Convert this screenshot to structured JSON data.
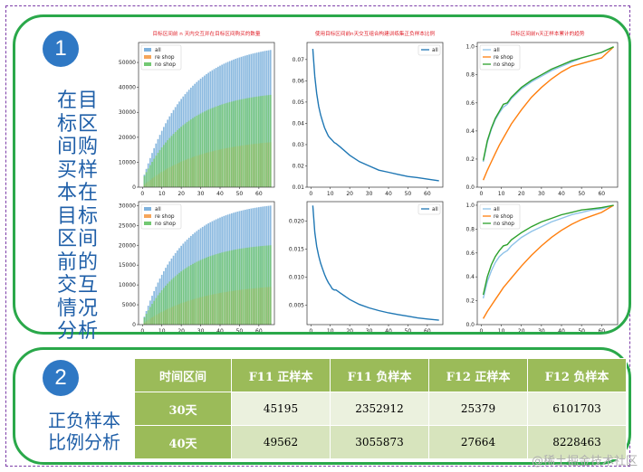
{
  "section1": {
    "number": "1",
    "text_chars": [
      "在目",
      "标区",
      "间购",
      "买样",
      "本在",
      "目标",
      "区间",
      "前的",
      "交互",
      "情况",
      "分析"
    ]
  },
  "section2": {
    "number": "2",
    "title_lines": [
      "正负样本",
      "比例分析"
    ]
  },
  "chart_data": [
    {
      "type": "bar",
      "title": "目标区间前 n 天内交互并在目标区间购买的数量",
      "x_range": [
        1,
        66
      ],
      "xticks": [
        0,
        10,
        20,
        30,
        40,
        50,
        60
      ],
      "ylim": [
        0,
        58000
      ],
      "yticks": [
        0,
        10000,
        20000,
        30000,
        40000,
        50000
      ],
      "legend": "top-left",
      "series": [
        {
          "name": "all",
          "color": "#7fb2dd",
          "start": 5000,
          "end": 55000,
          "k": 0.045
        },
        {
          "name": "re shop",
          "color": "#f5a55a",
          "start": 1000,
          "end": 18000,
          "k": 0.035
        },
        {
          "name": "no shop",
          "color": "#72c872",
          "start": 4500,
          "end": 37000,
          "k": 0.045
        }
      ]
    },
    {
      "type": "line",
      "title": "使用目标区间前n天交互组合构建训练集正负样本比例",
      "x_range": [
        1,
        66
      ],
      "xticks": [
        0,
        10,
        20,
        30,
        40,
        50,
        60
      ],
      "ylim": [
        0.01,
        0.078
      ],
      "yticks": [
        0.01,
        0.02,
        0.03,
        0.04,
        0.05,
        0.06,
        0.07
      ],
      "legend": "top-right",
      "series": [
        {
          "name": "all",
          "color": "#1f77b4",
          "points": [
            [
              1,
              0.075
            ],
            [
              2,
              0.062
            ],
            [
              3,
              0.054
            ],
            [
              4,
              0.048
            ],
            [
              5,
              0.044
            ],
            [
              6,
              0.041
            ],
            [
              7,
              0.038
            ],
            [
              8,
              0.036
            ],
            [
              9,
              0.034
            ],
            [
              10,
              0.033
            ],
            [
              11,
              0.032
            ],
            [
              12,
              0.031
            ],
            [
              13,
              0.0305
            ],
            [
              15,
              0.029
            ],
            [
              20,
              0.025
            ],
            [
              25,
              0.022
            ],
            [
              30,
              0.02
            ],
            [
              35,
              0.018
            ],
            [
              40,
              0.017
            ],
            [
              45,
              0.016
            ],
            [
              50,
              0.015
            ],
            [
              55,
              0.0145
            ],
            [
              60,
              0.0138
            ],
            [
              66,
              0.013
            ]
          ]
        }
      ]
    },
    {
      "type": "line",
      "title": "目标区间前n天正样本累计的趋势",
      "x_range": [
        1,
        66
      ],
      "xticks": [
        0,
        10,
        20,
        30,
        40,
        50,
        60
      ],
      "ylim": [
        0,
        1.03
      ],
      "yticks": [
        0.0,
        0.2,
        0.4,
        0.6,
        0.8,
        1.0
      ],
      "legend": "top-left",
      "series": [
        {
          "name": "all",
          "color": "#8ec2e8",
          "points": [
            [
              1,
              0.18
            ],
            [
              3,
              0.32
            ],
            [
              5,
              0.41
            ],
            [
              7,
              0.48
            ],
            [
              9,
              0.53
            ],
            [
              11,
              0.57
            ],
            [
              13,
              0.59
            ],
            [
              15,
              0.63
            ],
            [
              20,
              0.7
            ],
            [
              25,
              0.75
            ],
            [
              30,
              0.79
            ],
            [
              35,
              0.83
            ],
            [
              40,
              0.86
            ],
            [
              45,
              0.89
            ],
            [
              50,
              0.92
            ],
            [
              55,
              0.94
            ],
            [
              60,
              0.96
            ],
            [
              66,
              1.0
            ]
          ]
        },
        {
          "name": "re shop",
          "color": "#ff7f0e",
          "points": [
            [
              1,
              0.05
            ],
            [
              3,
              0.12
            ],
            [
              5,
              0.18
            ],
            [
              7,
              0.24
            ],
            [
              9,
              0.3
            ],
            [
              11,
              0.35
            ],
            [
              13,
              0.4
            ],
            [
              15,
              0.45
            ],
            [
              20,
              0.55
            ],
            [
              25,
              0.64
            ],
            [
              30,
              0.71
            ],
            [
              35,
              0.77
            ],
            [
              40,
              0.82
            ],
            [
              45,
              0.86
            ],
            [
              50,
              0.88
            ],
            [
              55,
              0.9
            ],
            [
              60,
              0.92
            ],
            [
              66,
              1.0
            ]
          ]
        },
        {
          "name": "no shop",
          "color": "#2ca02c",
          "points": [
            [
              1,
              0.19
            ],
            [
              3,
              0.33
            ],
            [
              5,
              0.42
            ],
            [
              7,
              0.49
            ],
            [
              9,
              0.54
            ],
            [
              11,
              0.59
            ],
            [
              13,
              0.6
            ],
            [
              15,
              0.64
            ],
            [
              20,
              0.71
            ],
            [
              25,
              0.76
            ],
            [
              30,
              0.8
            ],
            [
              35,
              0.84
            ],
            [
              40,
              0.87
            ],
            [
              45,
              0.9
            ],
            [
              50,
              0.92
            ],
            [
              55,
              0.94
            ],
            [
              60,
              0.96
            ],
            [
              66,
              1.0
            ]
          ]
        }
      ]
    },
    {
      "type": "bar",
      "title": "",
      "x_range": [
        1,
        66
      ],
      "xticks": [
        0,
        10,
        20,
        30,
        40,
        50,
        60
      ],
      "ylim": [
        0,
        31000
      ],
      "yticks": [
        0,
        5000,
        10000,
        15000,
        20000,
        25000,
        30000
      ],
      "legend": "top-left",
      "series": [
        {
          "name": "all",
          "color": "#7fb2dd",
          "start": 2000,
          "end": 30000,
          "k": 0.05
        },
        {
          "name": "re shop",
          "color": "#f5a55a",
          "start": 500,
          "end": 9500,
          "k": 0.035
        },
        {
          "name": "no shop",
          "color": "#72c872",
          "start": 1800,
          "end": 20000,
          "k": 0.05
        }
      ]
    },
    {
      "type": "line",
      "title": "",
      "x_range": [
        1,
        66
      ],
      "xticks": [
        0,
        10,
        20,
        30,
        40,
        50,
        60
      ],
      "ylim": [
        0.0015,
        0.0235
      ],
      "yticks": [
        0.005,
        0.01,
        0.015,
        0.02
      ],
      "legend": "top-right",
      "series": [
        {
          "name": "all",
          "color": "#1f77b4",
          "points": [
            [
              1,
              0.0228
            ],
            [
              2,
              0.018
            ],
            [
              3,
              0.0155
            ],
            [
              4,
              0.0138
            ],
            [
              5,
              0.0125
            ],
            [
              6,
              0.0115
            ],
            [
              7,
              0.0105
            ],
            [
              8,
              0.0097
            ],
            [
              9,
              0.009
            ],
            [
              10,
              0.0085
            ],
            [
              11,
              0.0079
            ],
            [
              12,
              0.0077
            ],
            [
              13,
              0.0077
            ],
            [
              15,
              0.0072
            ],
            [
              20,
              0.006
            ],
            [
              25,
              0.0051
            ],
            [
              30,
              0.0045
            ],
            [
              35,
              0.004
            ],
            [
              40,
              0.0036
            ],
            [
              45,
              0.0033
            ],
            [
              50,
              0.003
            ],
            [
              55,
              0.0027
            ],
            [
              60,
              0.0025
            ],
            [
              66,
              0.0023
            ]
          ]
        }
      ]
    },
    {
      "type": "line",
      "title": "",
      "x_range": [
        1,
        66
      ],
      "xticks": [
        0,
        10,
        20,
        30,
        40,
        50,
        60
      ],
      "ylim": [
        0,
        1.03
      ],
      "yticks": [
        0.0,
        0.2,
        0.4,
        0.6,
        0.8,
        1.0
      ],
      "legend": "top-left",
      "series": [
        {
          "name": "all",
          "color": "#8ec2e8",
          "points": [
            [
              1,
              0.22
            ],
            [
              3,
              0.36
            ],
            [
              5,
              0.45
            ],
            [
              7,
              0.52
            ],
            [
              9,
              0.57
            ],
            [
              11,
              0.6
            ],
            [
              13,
              0.62
            ],
            [
              15,
              0.66
            ],
            [
              20,
              0.73
            ],
            [
              25,
              0.78
            ],
            [
              30,
              0.82
            ],
            [
              35,
              0.86
            ],
            [
              40,
              0.89
            ],
            [
              45,
              0.92
            ],
            [
              50,
              0.94
            ],
            [
              55,
              0.96
            ],
            [
              60,
              0.97
            ],
            [
              66,
              1.0
            ]
          ]
        },
        {
          "name": "re shop",
          "color": "#ff7f0e",
          "points": [
            [
              1,
              0.05
            ],
            [
              3,
              0.11
            ],
            [
              5,
              0.16
            ],
            [
              7,
              0.21
            ],
            [
              9,
              0.26
            ],
            [
              11,
              0.31
            ],
            [
              13,
              0.35
            ],
            [
              15,
              0.39
            ],
            [
              20,
              0.49
            ],
            [
              25,
              0.58
            ],
            [
              30,
              0.66
            ],
            [
              35,
              0.73
            ],
            [
              40,
              0.79
            ],
            [
              45,
              0.84
            ],
            [
              50,
              0.88
            ],
            [
              55,
              0.91
            ],
            [
              60,
              0.94
            ],
            [
              66,
              1.0
            ]
          ]
        },
        {
          "name": "no shop",
          "color": "#2ca02c",
          "points": [
            [
              1,
              0.25
            ],
            [
              3,
              0.4
            ],
            [
              5,
              0.5
            ],
            [
              7,
              0.57
            ],
            [
              9,
              0.62
            ],
            [
              11,
              0.66
            ],
            [
              13,
              0.67
            ],
            [
              15,
              0.71
            ],
            [
              20,
              0.77
            ],
            [
              25,
              0.82
            ],
            [
              30,
              0.86
            ],
            [
              35,
              0.89
            ],
            [
              40,
              0.92
            ],
            [
              45,
              0.94
            ],
            [
              50,
              0.96
            ],
            [
              55,
              0.97
            ],
            [
              60,
              0.98
            ],
            [
              66,
              1.0
            ]
          ]
        }
      ]
    }
  ],
  "table": {
    "headers": [
      "时间区间",
      "F11 正样本",
      "F11 负样本",
      "F12 正样本",
      "F12 负样本"
    ],
    "rows": [
      [
        "30天",
        "45195",
        "2352912",
        "25379",
        "6101703"
      ],
      [
        "40天",
        "49562",
        "3055873",
        "27664",
        "8228463"
      ]
    ]
  },
  "watermark": "@稀土掘金技术社区"
}
